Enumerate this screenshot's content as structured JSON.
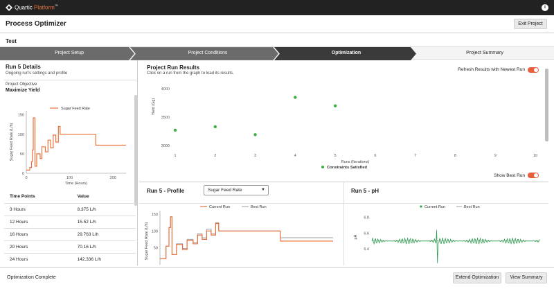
{
  "app": {
    "brand_name": "Quartic",
    "brand_accent": "Platform",
    "brand_mark": "™"
  },
  "header": {
    "title": "Process Optimizer",
    "exit_label": "Exit Project"
  },
  "project": {
    "name": "Test"
  },
  "stepper": {
    "steps": [
      {
        "label": "Project Setup",
        "state": "done"
      },
      {
        "label": "Project Conditions",
        "state": "done"
      },
      {
        "label": "Optimization",
        "state": "active"
      },
      {
        "label": "Project Summary",
        "state": "pending"
      }
    ]
  },
  "left": {
    "title": "Run 5 Details",
    "subtitle": "Ongoing run's settings and profile",
    "objective_label": "Project Objective",
    "objective_value": "Maximize Yield",
    "table_headers": [
      "Time Points",
      "Value"
    ],
    "rows": [
      [
        "3 Hours",
        "8.375 L/h"
      ],
      [
        "12 Hours",
        "15.52 L/h"
      ],
      [
        "16 Hours",
        "29.763 L/h"
      ],
      [
        "20 Hours",
        "70.16 L/h"
      ],
      [
        "24 Hours",
        "142.336 L/h"
      ]
    ]
  },
  "results": {
    "title": "Project Run Results",
    "subtitle": "Click on a run from the graph to load its results.",
    "refresh_label": "Refresh Results with Newest Run",
    "best_label": "Show Best Run"
  },
  "profile": {
    "title": "Run 5 - Profile",
    "selected": "Sugar Feed Rate"
  },
  "ph": {
    "title": "Run 5 - pH"
  },
  "footer": {
    "status": "Optimization Complete",
    "extend_label": "Extend Optimization",
    "summary_label": "View Summary"
  },
  "colors": {
    "accent": "#e8703a",
    "scatter": "#3cb043",
    "best_run": "#9aa0a6",
    "ph_line": "#2e9e4e",
    "stepper_dark": "#3a3a3a",
    "stepper_mid": "#6b6b6b"
  },
  "chart_data": [
    {
      "id": "left_profile",
      "type": "line",
      "xlabel": "Time (Hours)",
      "ylabel": "Sugar Feed Rate (L/h)",
      "xlim": [
        0,
        230
      ],
      "ylim": [
        0,
        160
      ],
      "xticks": [
        0,
        100,
        200
      ],
      "yticks": [
        0,
        50,
        100,
        150
      ],
      "legend": "top",
      "series": [
        {
          "name": "Sugar Feed Rate",
          "points": [
            [
              0,
              8
            ],
            [
              8,
              8
            ],
            [
              8,
              15
            ],
            [
              12,
              15
            ],
            [
              12,
              30
            ],
            [
              14,
              30
            ],
            [
              14,
              60
            ],
            [
              16,
              60
            ],
            [
              16,
              142
            ],
            [
              20,
              142
            ],
            [
              20,
              18
            ],
            [
              24,
              18
            ],
            [
              24,
              50
            ],
            [
              32,
              50
            ],
            [
              32,
              38
            ],
            [
              36,
              38
            ],
            [
              36,
              68
            ],
            [
              44,
              68
            ],
            [
              44,
              55
            ],
            [
              50,
              55
            ],
            [
              50,
              85
            ],
            [
              56,
              85
            ],
            [
              56,
              65
            ],
            [
              62,
              65
            ],
            [
              62,
              98
            ],
            [
              68,
              98
            ],
            [
              68,
              80
            ],
            [
              74,
              80
            ],
            [
              74,
              120
            ],
            [
              78,
              120
            ],
            [
              78,
              100
            ],
            [
              160,
              100
            ],
            [
              160,
              72
            ],
            [
              230,
              72
            ]
          ]
        }
      ]
    },
    {
      "id": "run_results",
      "type": "scatter",
      "xlabel": "Runs (Iterations)",
      "ylabel": "Yield (Gg)",
      "xlim": [
        1,
        10
      ],
      "ylim": [
        2900,
        4100
      ],
      "xticks": [
        1,
        2,
        3,
        4,
        5,
        6,
        7,
        8,
        9,
        10
      ],
      "yticks": [
        3000,
        3500,
        4000
      ],
      "legend": "bottom",
      "series": [
        {
          "name": "Constraints Satisfied",
          "points": [
            [
              1,
              3270
            ],
            [
              2,
              3330
            ],
            [
              3,
              3190
            ],
            [
              4,
              3850
            ],
            [
              5,
              3700
            ]
          ]
        }
      ]
    },
    {
      "id": "run5_profile",
      "type": "line",
      "ylabel": "Sugar Feed Rate (L/h)",
      "xlim": [
        0,
        230
      ],
      "ylim": [
        0,
        160
      ],
      "yticks": [
        50,
        100,
        150
      ],
      "legend": "top",
      "series": [
        {
          "name": "Current Run",
          "points": [
            [
              0,
              18
            ],
            [
              8,
              18
            ],
            [
              8,
              55
            ],
            [
              12,
              55
            ],
            [
              12,
              110
            ],
            [
              14,
              110
            ],
            [
              14,
              142
            ],
            [
              16,
              142
            ],
            [
              16,
              30
            ],
            [
              22,
              30
            ],
            [
              22,
              60
            ],
            [
              30,
              60
            ],
            [
              30,
              45
            ],
            [
              36,
              45
            ],
            [
              36,
              72
            ],
            [
              44,
              72
            ],
            [
              44,
              62
            ],
            [
              50,
              62
            ],
            [
              50,
              88
            ],
            [
              56,
              88
            ],
            [
              56,
              75
            ],
            [
              62,
              75
            ],
            [
              62,
              100
            ],
            [
              68,
              100
            ],
            [
              68,
              88
            ],
            [
              74,
              88
            ],
            [
              74,
              122
            ],
            [
              78,
              122
            ],
            [
              78,
              100
            ],
            [
              160,
              100
            ],
            [
              160,
              70
            ],
            [
              230,
              70
            ]
          ]
        },
        {
          "name": "Best Run",
          "points": [
            [
              0,
              18
            ],
            [
              8,
              18
            ],
            [
              8,
              55
            ],
            [
              12,
              55
            ],
            [
              12,
              110
            ],
            [
              14,
              110
            ],
            [
              14,
              142
            ],
            [
              16,
              142
            ],
            [
              16,
              30
            ],
            [
              22,
              30
            ],
            [
              22,
              62
            ],
            [
              30,
              62
            ],
            [
              30,
              48
            ],
            [
              36,
              48
            ],
            [
              36,
              75
            ],
            [
              44,
              75
            ],
            [
              44,
              66
            ],
            [
              50,
              66
            ],
            [
              50,
              92
            ],
            [
              56,
              92
            ],
            [
              56,
              80
            ],
            [
              62,
              80
            ],
            [
              62,
              105
            ],
            [
              68,
              105
            ],
            [
              68,
              92
            ],
            [
              74,
              92
            ],
            [
              74,
              125
            ],
            [
              78,
              125
            ],
            [
              78,
              100
            ],
            [
              160,
              100
            ],
            [
              160,
              80
            ],
            [
              230,
              80
            ]
          ]
        }
      ]
    },
    {
      "id": "run5_ph",
      "type": "line",
      "ylabel": "pH",
      "xlim": [
        0,
        230
      ],
      "ylim": [
        6.2,
        6.9
      ],
      "yticks": [
        6.4,
        6.6,
        6.8
      ],
      "legend": "top",
      "series": [
        {
          "name": "Current Run",
          "baseline": 6.5,
          "amplitude": 0.04,
          "spike_x": 90,
          "spike_min": 6.22,
          "spike_max": 6.64
        },
        {
          "name": "Best Run",
          "baseline": 6.5,
          "amplitude": 0.0
        }
      ]
    }
  ]
}
